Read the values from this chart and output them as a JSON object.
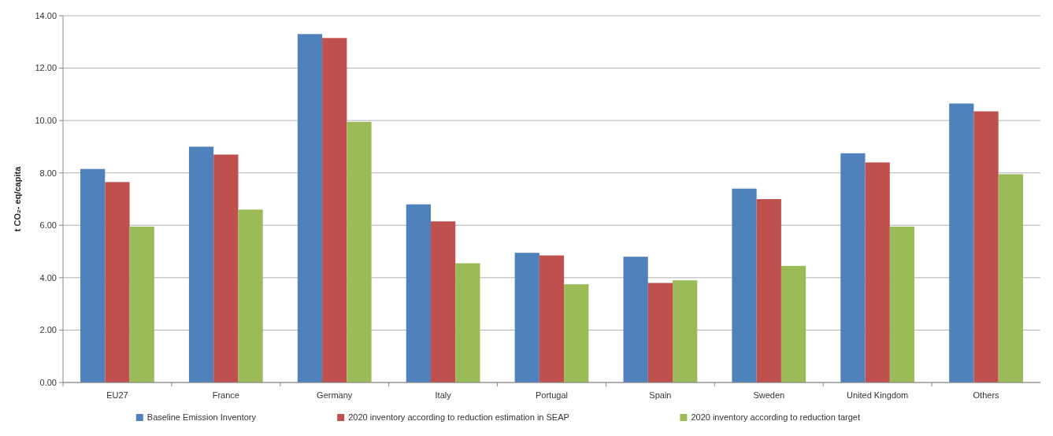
{
  "chart_data": {
    "type": "bar",
    "ylabel": "t CO₂- eq/capita",
    "categories": [
      "EU27",
      "France",
      "Germany",
      "Italy",
      "Portugal",
      "Spain",
      "Sweden",
      "United Kingdom",
      "Others"
    ],
    "series": [
      {
        "name": "Baseline Emission Inventory",
        "color": "#4f81bd",
        "values": [
          8.15,
          9.0,
          13.3,
          6.8,
          4.95,
          4.8,
          7.4,
          8.75,
          10.65
        ]
      },
      {
        "name": "2020 inventory according to reduction estimation in SEAP",
        "color": "#c0504d",
        "values": [
          7.65,
          8.7,
          13.15,
          6.15,
          4.85,
          3.8,
          7.0,
          8.4,
          10.35
        ]
      },
      {
        "name": "2020 inventory according to reduction target",
        "color": "#9bbb59",
        "values": [
          5.95,
          6.6,
          9.95,
          4.55,
          3.75,
          3.9,
          4.45,
          5.95,
          7.95
        ]
      }
    ],
    "ylim": [
      0,
      14
    ],
    "yticks": [
      {
        "value": 0,
        "label": "0.00"
      },
      {
        "value": 2,
        "label": "2.00"
      },
      {
        "value": 4,
        "label": "4.00"
      },
      {
        "value": 6,
        "label": "6.00"
      },
      {
        "value": 8,
        "label": "8.00"
      },
      {
        "value": 10,
        "label": "10.00"
      },
      {
        "value": 12,
        "label": "12.00"
      },
      {
        "value": 14,
        "label": "14.00"
      }
    ],
    "grid": "y",
    "legend": "bottom"
  }
}
